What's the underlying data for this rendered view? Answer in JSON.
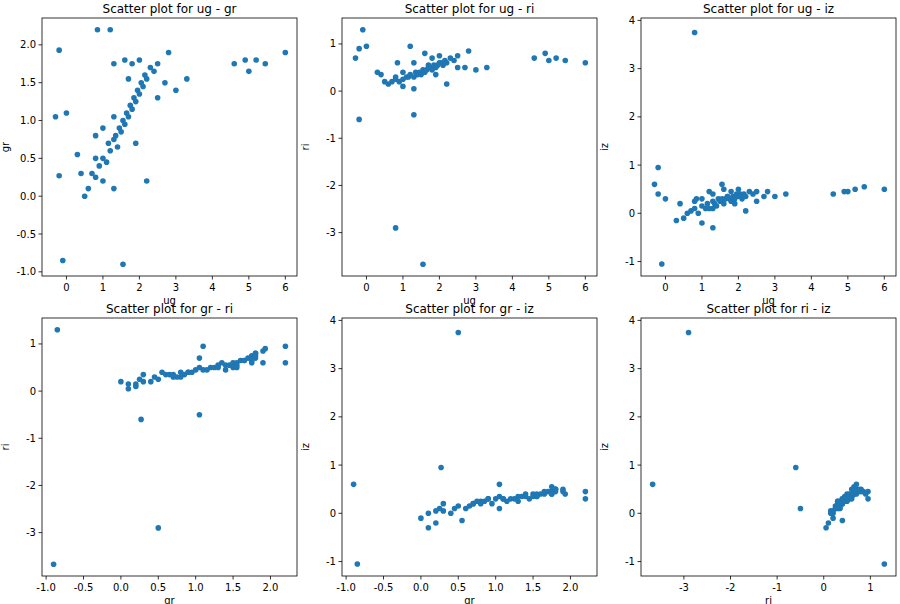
{
  "chart_data": [
    {
      "type": "scatter",
      "title": "Scatter plot for ug - gr",
      "x_label": "ug",
      "y_label": "gr",
      "color": "#1f77b4",
      "marker": "circle",
      "grid": false,
      "x": [
        0.6,
        0.7,
        0.8,
        0.9,
        1.0,
        1.1,
        1.15,
        1.2,
        1.3,
        1.35,
        1.4,
        1.45,
        1.5,
        1.55,
        1.6,
        1.65,
        1.7,
        1.75,
        1.8,
        1.85,
        1.9,
        1.95,
        2.0,
        2.05,
        2.1,
        2.15,
        2.2,
        2.3,
        2.4,
        2.5,
        1.6,
        1.8,
        1.3,
        2.0,
        1.9,
        0.8,
        1.0,
        2.7,
        3.0,
        3.3,
        2.8,
        1.2,
        0.85,
        2.2,
        1.0,
        1.3,
        0.5,
        0.4,
        2.5,
        1.7,
        4.6,
        4.9,
        5.0,
        5.2,
        5.45,
        6.0,
        1.55,
        -0.1,
        0.8,
        -0.2,
        1.3,
        -0.2,
        0.0,
        -0.3,
        0.3
      ],
      "values": [
        0.1,
        0.3,
        0.25,
        0.4,
        0.5,
        0.45,
        0.7,
        0.6,
        0.75,
        0.8,
        0.65,
        0.9,
        0.85,
        1.0,
        0.95,
        1.1,
        1.05,
        1.2,
        1.15,
        1.3,
        1.25,
        1.4,
        1.35,
        1.5,
        1.45,
        1.6,
        1.55,
        1.7,
        1.65,
        1.75,
        1.8,
        1.75,
        1.75,
        1.8,
        0.7,
        0.8,
        0.9,
        1.5,
        1.4,
        1.55,
        1.9,
        2.2,
        2.2,
        0.2,
        0.2,
        0.1,
        0.0,
        0.3,
        1.3,
        1.55,
        1.75,
        1.8,
        1.65,
        1.8,
        1.75,
        1.9,
        -0.9,
        -0.85,
        0.5,
        0.27,
        1.05,
        1.93,
        1.1,
        1.05,
        0.55
      ],
      "xlim": [
        -0.67,
        6.32
      ],
      "ylim": [
        -1.055,
        2.355
      ],
      "xticks": [
        0,
        1,
        2,
        3,
        4,
        5,
        6
      ],
      "yticks": [
        {
          "value": -1,
          "label": "-1.0"
        },
        -0.5,
        {
          "value": 0,
          "label": "0.0"
        },
        0.5,
        {
          "value": 1,
          "label": "1.0"
        },
        1.5,
        {
          "value": 2,
          "label": "2.0"
        }
      ]
    },
    {
      "type": "scatter",
      "title": "Scatter plot for ug - ri",
      "x_label": "ug",
      "y_label": "ri",
      "color": "#1f77b4",
      "marker": "circle",
      "grid": false,
      "x": [
        0.6,
        0.7,
        0.8,
        0.9,
        1.0,
        1.1,
        1.15,
        1.2,
        1.3,
        1.35,
        1.4,
        1.45,
        1.5,
        1.55,
        1.6,
        1.65,
        1.7,
        1.75,
        1.8,
        1.85,
        1.9,
        1.95,
        2.0,
        2.05,
        2.1,
        2.15,
        2.2,
        2.3,
        2.4,
        2.5,
        1.6,
        1.8,
        1.3,
        2.0,
        1.9,
        0.8,
        1.0,
        2.7,
        3.0,
        3.3,
        2.8,
        1.2,
        0.85,
        2.2,
        1.0,
        1.3,
        0.5,
        0.4,
        2.5,
        1.7,
        4.6,
        4.9,
        5.0,
        5.2,
        5.45,
        6.0,
        1.55,
        -0.1,
        0.8,
        -0.2,
        1.3,
        -0.2,
        0.0,
        -0.3,
        0.3
      ],
      "values": [
        0.15,
        0.2,
        0.25,
        0.2,
        0.25,
        0.3,
        0.3,
        0.35,
        0.3,
        0.4,
        0.35,
        0.4,
        0.35,
        0.45,
        0.4,
        0.45,
        0.5,
        0.5,
        0.45,
        0.55,
        0.5,
        0.55,
        0.6,
        0.6,
        0.55,
        0.65,
        0.6,
        0.7,
        0.65,
        0.75,
        0.8,
        0.7,
        0.6,
        0.75,
        0.35,
        0.3,
        0.4,
        0.5,
        0.45,
        0.5,
        0.85,
        0.95,
        0.6,
        0.15,
        0.1,
        0.05,
        0.2,
        0.35,
        0.5,
        0.55,
        0.7,
        0.8,
        0.65,
        0.7,
        0.65,
        0.6,
        -3.67,
        1.3,
        -2.9,
        -0.6,
        -0.5,
        0.9,
        0.95,
        0.7,
        0.4
      ],
      "xlim": [
        -0.67,
        6.32
      ],
      "ylim": [
        -3.92,
        1.55
      ],
      "xticks": [
        0,
        1,
        2,
        3,
        4,
        5,
        6
      ],
      "yticks": [
        -3,
        -2,
        -1,
        0,
        1
      ]
    },
    {
      "type": "scatter",
      "title": "Scatter plot for ug - iz",
      "x_label": "ug",
      "y_label": "iz",
      "color": "#1f77b4",
      "marker": "circle",
      "grid": false,
      "x": [
        0.6,
        0.7,
        0.8,
        0.9,
        1.0,
        1.1,
        1.15,
        1.2,
        1.3,
        1.35,
        1.4,
        1.45,
        1.5,
        1.55,
        1.6,
        1.65,
        1.7,
        1.75,
        1.8,
        1.85,
        1.9,
        1.95,
        2.0,
        2.05,
        2.1,
        2.15,
        2.2,
        2.3,
        2.4,
        2.5,
        1.6,
        1.8,
        1.3,
        2.0,
        1.9,
        0.8,
        1.0,
        2.7,
        3.0,
        3.3,
        2.8,
        1.2,
        0.85,
        2.2,
        1.0,
        1.3,
        0.5,
        0.4,
        2.5,
        1.7,
        4.6,
        4.9,
        5.0,
        5.2,
        5.45,
        6.0,
        1.55,
        -0.1,
        0.8,
        -0.2,
        1.3,
        -0.2,
        0.0,
        -0.3,
        0.3
      ],
      "values": [
        0.0,
        0.05,
        0.1,
        0.0,
        0.15,
        0.1,
        0.2,
        0.1,
        0.25,
        0.2,
        0.15,
        0.3,
        0.25,
        0.3,
        0.2,
        0.3,
        0.35,
        0.3,
        0.25,
        0.35,
        0.3,
        0.4,
        0.35,
        0.4,
        0.3,
        0.4,
        0.35,
        0.45,
        0.4,
        0.45,
        0.5,
        0.45,
        0.4,
        0.5,
        0.2,
        0.25,
        0.3,
        0.35,
        0.35,
        0.4,
        0.45,
        0.45,
        0.3,
        0.05,
        -0.2,
        -0.3,
        -0.1,
        0.2,
        0.25,
        0.35,
        0.4,
        0.45,
        0.45,
        0.5,
        0.55,
        0.5,
        0.6,
        -1.05,
        3.75,
        0.95,
        0.1,
        0.4,
        0.3,
        0.6,
        -0.15
      ],
      "xlim": [
        -0.67,
        6.32
      ],
      "ylim": [
        -1.3,
        4.05
      ],
      "xticks": [
        0,
        1,
        2,
        3,
        4,
        5,
        6
      ],
      "yticks": [
        -1,
        0,
        1,
        2,
        3,
        4
      ]
    },
    {
      "type": "scatter",
      "title": "Scatter plot for gr - ri",
      "x_label": "gr",
      "y_label": "ri",
      "color": "#1f77b4",
      "marker": "circle",
      "grid": false,
      "x": [
        0.1,
        0.3,
        0.25,
        0.4,
        0.5,
        0.45,
        0.7,
        0.6,
        0.75,
        0.8,
        0.65,
        0.9,
        0.85,
        1.0,
        0.95,
        1.1,
        1.05,
        1.2,
        1.15,
        1.3,
        1.25,
        1.4,
        1.35,
        1.5,
        1.45,
        1.6,
        1.55,
        1.7,
        1.65,
        1.75,
        1.8,
        1.75,
        1.75,
        1.8,
        0.7,
        0.8,
        0.9,
        1.5,
        1.4,
        1.55,
        1.9,
        2.2,
        2.2,
        0.2,
        0.2,
        0.1,
        0.0,
        0.3,
        1.3,
        1.55,
        1.75,
        1.8,
        1.65,
        1.8,
        1.75,
        1.9,
        -0.9,
        -0.85,
        0.5,
        0.27,
        1.05,
        1.93,
        1.1,
        1.05,
        0.55
      ],
      "values": [
        0.15,
        0.2,
        0.25,
        0.2,
        0.25,
        0.3,
        0.3,
        0.35,
        0.3,
        0.4,
        0.35,
        0.4,
        0.35,
        0.45,
        0.4,
        0.45,
        0.5,
        0.5,
        0.45,
        0.55,
        0.5,
        0.55,
        0.6,
        0.6,
        0.55,
        0.65,
        0.6,
        0.7,
        0.65,
        0.75,
        0.8,
        0.7,
        0.6,
        0.75,
        0.35,
        0.3,
        0.4,
        0.5,
        0.45,
        0.5,
        0.85,
        0.95,
        0.6,
        0.15,
        0.1,
        0.05,
        0.2,
        0.35,
        0.5,
        0.55,
        0.7,
        0.8,
        0.65,
        0.7,
        0.65,
        0.6,
        -3.67,
        1.3,
        -2.9,
        -0.6,
        -0.5,
        0.9,
        0.95,
        0.7,
        0.4
      ],
      "xlim": [
        -1.055,
        2.355
      ],
      "ylim": [
        -3.92,
        1.55
      ],
      "xticks": [
        {
          "value": -1,
          "label": "-1.0"
        },
        -0.5,
        {
          "value": 0,
          "label": "0.0"
        },
        0.5,
        {
          "value": 1,
          "label": "1.0"
        },
        1.5,
        {
          "value": 2,
          "label": "2.0"
        }
      ],
      "yticks": [
        -3,
        -2,
        -1,
        0,
        1
      ]
    },
    {
      "type": "scatter",
      "title": "Scatter plot for gr - iz",
      "x_label": "gr",
      "y_label": "iz",
      "color": "#1f77b4",
      "marker": "circle",
      "grid": false,
      "x": [
        0.1,
        0.3,
        0.25,
        0.4,
        0.5,
        0.45,
        0.7,
        0.6,
        0.75,
        0.8,
        0.65,
        0.9,
        0.85,
        1.0,
        0.95,
        1.1,
        1.05,
        1.2,
        1.15,
        1.3,
        1.25,
        1.4,
        1.35,
        1.5,
        1.45,
        1.6,
        1.55,
        1.7,
        1.65,
        1.75,
        1.8,
        1.75,
        1.75,
        1.8,
        0.7,
        0.8,
        0.9,
        1.5,
        1.4,
        1.55,
        1.9,
        2.2,
        2.2,
        0.2,
        0.2,
        0.1,
        0.0,
        0.3,
        1.3,
        1.55,
        1.75,
        1.8,
        1.65,
        1.8,
        1.75,
        1.9,
        -0.9,
        -0.85,
        0.5,
        0.27,
        1.05,
        1.93,
        1.1,
        1.05,
        0.55
      ],
      "values": [
        0.0,
        0.05,
        0.1,
        0.0,
        0.15,
        0.1,
        0.2,
        0.1,
        0.25,
        0.2,
        0.15,
        0.3,
        0.25,
        0.3,
        0.2,
        0.3,
        0.35,
        0.3,
        0.25,
        0.35,
        0.3,
        0.4,
        0.35,
        0.4,
        0.3,
        0.4,
        0.35,
        0.45,
        0.4,
        0.45,
        0.5,
        0.45,
        0.4,
        0.5,
        0.2,
        0.25,
        0.3,
        0.35,
        0.35,
        0.4,
        0.45,
        0.45,
        0.3,
        0.05,
        -0.2,
        -0.3,
        -0.1,
        0.2,
        0.25,
        0.35,
        0.4,
        0.45,
        0.45,
        0.5,
        0.55,
        0.5,
        0.6,
        -1.05,
        3.75,
        0.95,
        0.1,
        0.4,
        0.3,
        0.6,
        -0.15
      ],
      "xlim": [
        -1.055,
        2.355
      ],
      "ylim": [
        -1.3,
        4.05
      ],
      "xticks": [
        {
          "value": -1,
          "label": "-1.0"
        },
        -0.5,
        {
          "value": 0,
          "label": "0.0"
        },
        0.5,
        {
          "value": 1,
          "label": "1.0"
        },
        1.5,
        {
          "value": 2,
          "label": "2.0"
        }
      ],
      "yticks": [
        -1,
        0,
        1,
        2,
        3,
        4
      ]
    },
    {
      "type": "scatter",
      "title": "Scatter plot for ri - iz",
      "x_label": "ri",
      "y_label": "iz",
      "color": "#1f77b4",
      "marker": "circle",
      "grid": false,
      "x": [
        0.15,
        0.2,
        0.25,
        0.2,
        0.25,
        0.3,
        0.3,
        0.35,
        0.3,
        0.4,
        0.35,
        0.4,
        0.35,
        0.45,
        0.4,
        0.45,
        0.5,
        0.5,
        0.45,
        0.55,
        0.5,
        0.55,
        0.6,
        0.6,
        0.55,
        0.65,
        0.6,
        0.7,
        0.65,
        0.75,
        0.8,
        0.7,
        0.6,
        0.75,
        0.35,
        0.3,
        0.4,
        0.5,
        0.45,
        0.5,
        0.85,
        0.95,
        0.6,
        0.15,
        0.1,
        0.05,
        0.2,
        0.35,
        0.5,
        0.55,
        0.7,
        0.8,
        0.65,
        0.7,
        0.65,
        0.6,
        -3.67,
        1.3,
        -2.9,
        -0.6,
        -0.5,
        0.9,
        0.95,
        0.7,
        0.4
      ],
      "values": [
        0.0,
        0.05,
        0.1,
        0.0,
        0.15,
        0.1,
        0.2,
        0.1,
        0.25,
        0.2,
        0.15,
        0.3,
        0.25,
        0.3,
        0.2,
        0.3,
        0.35,
        0.3,
        0.25,
        0.35,
        0.3,
        0.4,
        0.35,
        0.4,
        0.3,
        0.4,
        0.35,
        0.45,
        0.4,
        0.45,
        0.5,
        0.45,
        0.4,
        0.5,
        0.2,
        0.25,
        0.3,
        0.35,
        0.35,
        0.4,
        0.45,
        0.45,
        0.3,
        0.05,
        -0.2,
        -0.3,
        -0.1,
        0.2,
        0.25,
        0.35,
        0.4,
        0.45,
        0.45,
        0.5,
        0.55,
        0.5,
        0.6,
        -1.05,
        3.75,
        0.95,
        0.1,
        0.4,
        0.3,
        0.6,
        -0.15
      ],
      "xlim": [
        -3.92,
        1.55
      ],
      "ylim": [
        -1.3,
        4.05
      ],
      "xticks": [
        -3,
        -2,
        -1,
        0,
        1
      ],
      "yticks": [
        -1,
        0,
        1,
        2,
        3,
        4
      ]
    }
  ]
}
